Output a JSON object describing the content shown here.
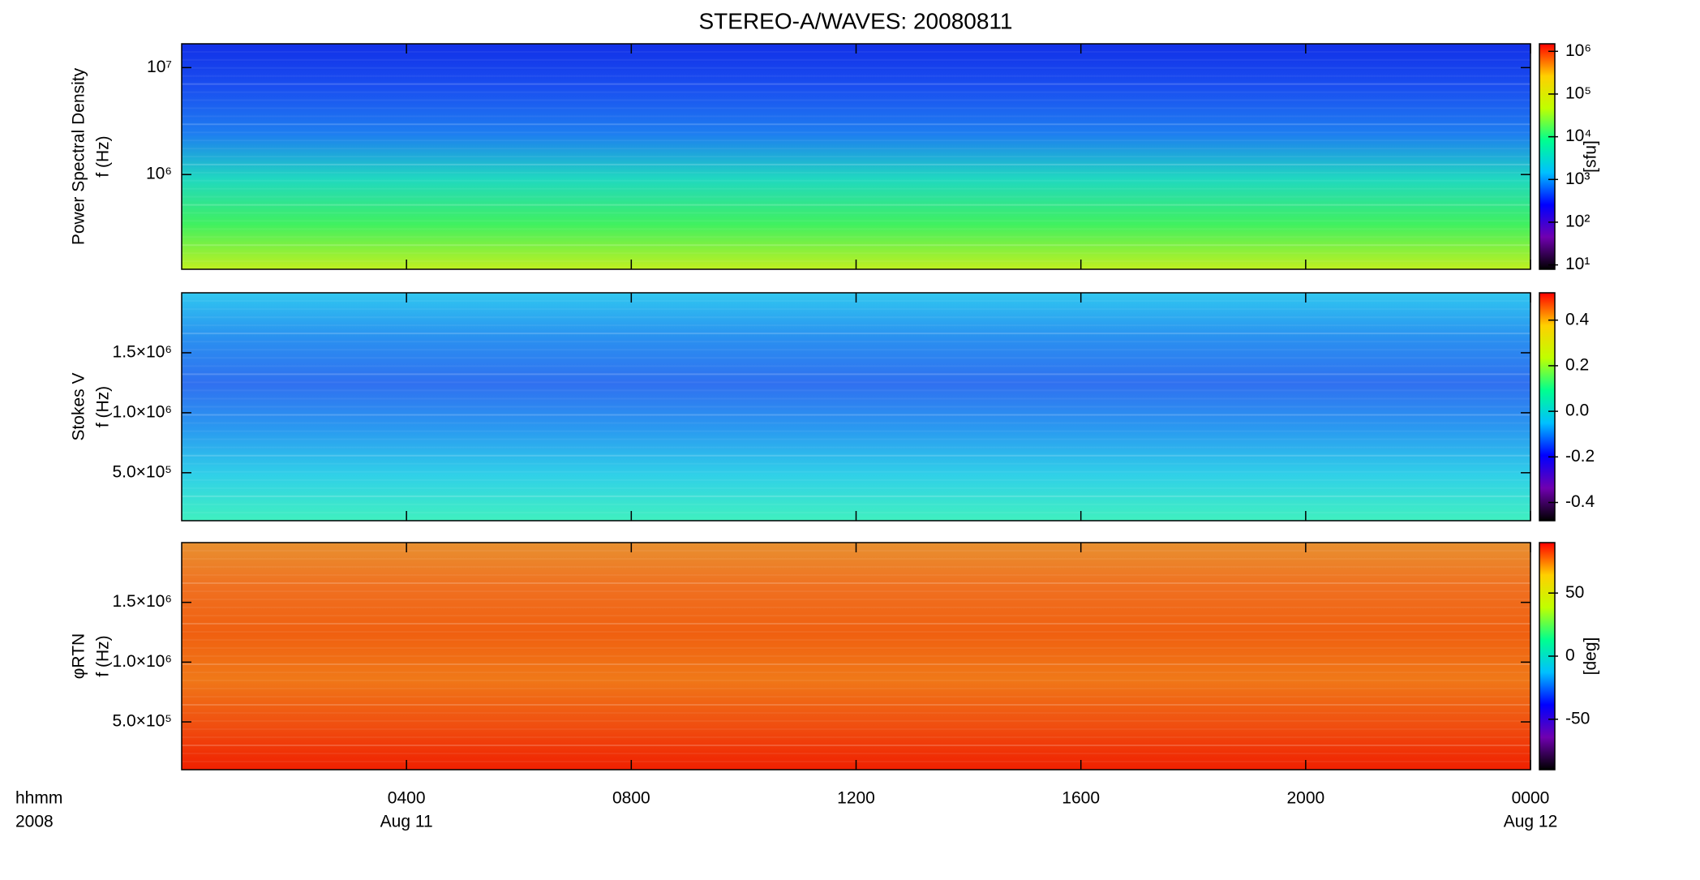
{
  "title": "STEREO-A/WAVES: 20080811",
  "chart_data": [
    {
      "type": "heatmap",
      "y_label": [
        "Power Spectral Density",
        "f (Hz)"
      ],
      "ylim": [
        130000,
        16700000
      ],
      "log_y": true,
      "yticks": [
        {
          "value": 1000000,
          "label": "10⁶"
        },
        {
          "value": 10000000,
          "label": "10⁷"
        }
      ],
      "fill_colors": [
        "#1230e8",
        "#1a50f0",
        "#1e7ef0",
        "#20d8c0",
        "#40f060",
        "#c0f020"
      ],
      "colormap": [
        "#000000",
        "#7000b0",
        "#0000ff",
        "#00c0ff",
        "#00ff90",
        "#c0ff00",
        "#ffd000",
        "#ff0000"
      ],
      "clim": [
        7.9,
        1500000
      ],
      "log_c": true,
      "colorbar_label": "[sfu]",
      "cticks": [
        {
          "value": 10,
          "label": "10¹"
        },
        {
          "value": 100,
          "label": "10²"
        },
        {
          "value": 1000,
          "label": "10³"
        },
        {
          "value": 10000,
          "label": "10⁴"
        },
        {
          "value": 100000,
          "label": "10⁵"
        },
        {
          "value": 1000000,
          "label": "10⁶"
        }
      ]
    },
    {
      "type": "heatmap",
      "y_label": [
        "Stokes V",
        "f (Hz)"
      ],
      "ylim": [
        100000,
        2000000
      ],
      "log_y": false,
      "yticks": [
        {
          "value": 500000,
          "label": "5.0×10⁵"
        },
        {
          "value": 1000000,
          "label": "1.0×10⁶"
        },
        {
          "value": 1500000,
          "label": "1.5×10⁶"
        }
      ],
      "fill_colors": [
        "#30c8f0",
        "#2a90f0",
        "#3070f0",
        "#2a9af0",
        "#30d0e8",
        "#40f0c0"
      ],
      "colormap": [
        "#000000",
        "#7000b0",
        "#0000ff",
        "#00c0ff",
        "#00ff90",
        "#c0ff00",
        "#ffd000",
        "#ff0000"
      ],
      "clim": [
        -0.48,
        0.52
      ],
      "log_c": false,
      "cticks": [
        {
          "value": -0.4,
          "label": "-0.4"
        },
        {
          "value": -0.2,
          "label": "-0.2"
        },
        {
          "value": 0,
          "label": "0.0"
        },
        0.2,
        0.4
      ]
    },
    {
      "type": "heatmap",
      "y_label": [
        "φRTN",
        "f (Hz)"
      ],
      "ylim": [
        100000,
        2000000
      ],
      "log_y": false,
      "yticks": [
        {
          "value": 500000,
          "label": "5.0×10⁵"
        },
        {
          "value": 1000000,
          "label": "1.0×10⁶"
        },
        {
          "value": 1500000,
          "label": "1.5×10⁶"
        }
      ],
      "fill_colors": [
        "#e89030",
        "#f07020",
        "#f06010",
        "#f07818",
        "#f05010",
        "#f02000"
      ],
      "colormap": [
        "#000000",
        "#7000b0",
        "#0000ff",
        "#00c0ff",
        "#00ff90",
        "#c0ff00",
        "#ffd000",
        "#ff0000"
      ],
      "clim": [
        -90,
        90
      ],
      "log_c": false,
      "colorbar_label": "[deg]",
      "cticks": [
        -50,
        0,
        50
      ],
      "xlim": [
        0,
        24
      ],
      "xticks": [
        {
          "value": 4,
          "label": "0400"
        },
        {
          "value": 8,
          "label": "0800"
        },
        {
          "value": 12,
          "label": "1200"
        },
        {
          "value": 16,
          "label": "1600"
        },
        {
          "value": 20,
          "label": "2000"
        },
        {
          "value": 24,
          "label": "0000"
        }
      ],
      "x_label": [
        "hhmm",
        "2008"
      ],
      "date_labels": [
        {
          "value": 4,
          "label": "Aug 11"
        },
        {
          "value": 24,
          "label": "Aug 12"
        }
      ]
    }
  ]
}
